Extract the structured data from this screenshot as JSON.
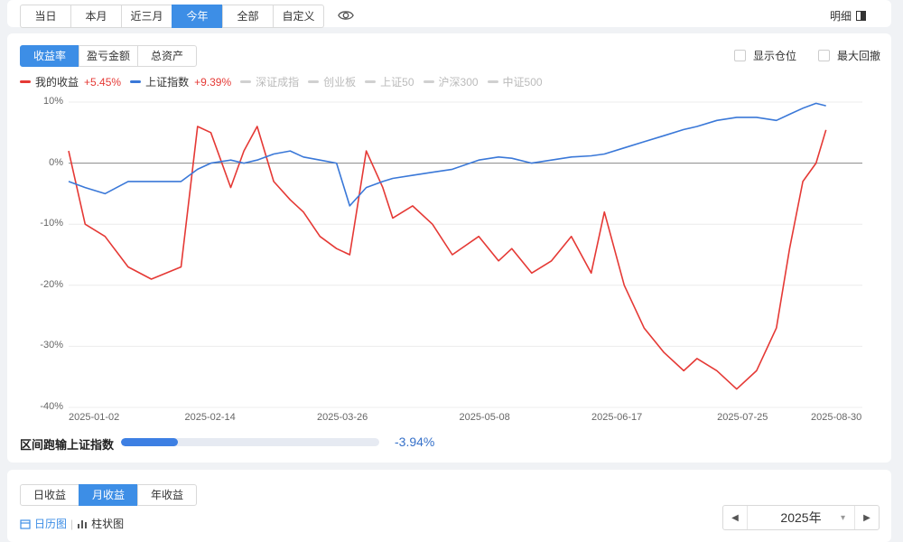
{
  "period_tabs": [
    "当日",
    "本月",
    "近三月",
    "今年",
    "全部",
    "自定义"
  ],
  "period_active": 3,
  "detail_label": "明细",
  "metric_tabs": [
    "收益率",
    "盈亏金额",
    "总资产"
  ],
  "metric_active": 0,
  "checkbox_position": "显示仓位",
  "checkbox_drawdown": "最大回撤",
  "legend": [
    {
      "name": "我的收益",
      "value": "+5.45%",
      "color": "#e53935",
      "active": true
    },
    {
      "name": "上证指数",
      "value": "+9.39%",
      "color": "#3a78d8",
      "active": true
    },
    {
      "name": "深证成指",
      "value": "",
      "color": "#d0d0d0",
      "active": false
    },
    {
      "name": "创业板",
      "value": "",
      "color": "#d0d0d0",
      "active": false
    },
    {
      "name": "上证50",
      "value": "",
      "color": "#d0d0d0",
      "active": false
    },
    {
      "name": "沪深300",
      "value": "",
      "color": "#d0d0d0",
      "active": false
    },
    {
      "name": "中证500",
      "value": "",
      "color": "#d0d0d0",
      "active": false
    }
  ],
  "chart_data": {
    "type": "line",
    "x_range": [
      "2025-01-02",
      "2025-08-30"
    ],
    "x_ticks": [
      "2025-01-02",
      "2025-02-14",
      "2025-03-26",
      "2025-05-08",
      "2025-06-17",
      "2025-07-25",
      "2025-08-30"
    ],
    "y_ticks": [
      "10%",
      "0%",
      "-10%",
      "-20%",
      "-30%",
      "-40%"
    ],
    "ylim": [
      -40,
      10
    ],
    "series": [
      {
        "name": "我的收益",
        "color": "#e53935",
        "x": [
          "2025-01-02",
          "2025-01-07",
          "2025-01-13",
          "2025-01-20",
          "2025-01-27",
          "2025-02-05",
          "2025-02-10",
          "2025-02-14",
          "2025-02-20",
          "2025-02-24",
          "2025-02-28",
          "2025-03-05",
          "2025-03-10",
          "2025-03-14",
          "2025-03-19",
          "2025-03-24",
          "2025-03-28",
          "2025-04-02",
          "2025-04-07",
          "2025-04-10",
          "2025-04-16",
          "2025-04-22",
          "2025-04-28",
          "2025-05-06",
          "2025-05-12",
          "2025-05-16",
          "2025-05-22",
          "2025-05-28",
          "2025-06-03",
          "2025-06-09",
          "2025-06-13",
          "2025-06-19",
          "2025-06-25",
          "2025-07-01",
          "2025-07-07",
          "2025-07-11",
          "2025-07-17",
          "2025-07-23",
          "2025-07-29",
          "2025-08-04",
          "2025-08-08",
          "2025-08-12",
          "2025-08-16",
          "2025-08-19"
        ],
        "values": [
          2,
          -10,
          -12,
          -17,
          -19,
          -17,
          6,
          5,
          -4,
          2,
          6,
          -3,
          -6,
          -8,
          -12,
          -14,
          -15,
          2,
          -4,
          -9,
          -7,
          -10,
          -15,
          -12,
          -16,
          -14,
          -18,
          -16,
          -12,
          -18,
          -8,
          -20,
          -27,
          -31,
          -34,
          -32,
          -34,
          -37,
          -34,
          -27,
          -14,
          -3,
          0,
          5.45
        ]
      },
      {
        "name": "上证指数",
        "color": "#3a78d8",
        "x": [
          "2025-01-02",
          "2025-01-07",
          "2025-01-13",
          "2025-01-20",
          "2025-01-27",
          "2025-02-05",
          "2025-02-10",
          "2025-02-14",
          "2025-02-20",
          "2025-02-24",
          "2025-02-28",
          "2025-03-05",
          "2025-03-10",
          "2025-03-14",
          "2025-03-19",
          "2025-03-24",
          "2025-03-28",
          "2025-04-02",
          "2025-04-07",
          "2025-04-10",
          "2025-04-16",
          "2025-04-22",
          "2025-04-28",
          "2025-05-06",
          "2025-05-12",
          "2025-05-16",
          "2025-05-22",
          "2025-05-28",
          "2025-06-03",
          "2025-06-09",
          "2025-06-13",
          "2025-06-19",
          "2025-06-25",
          "2025-07-01",
          "2025-07-07",
          "2025-07-11",
          "2025-07-17",
          "2025-07-23",
          "2025-07-29",
          "2025-08-04",
          "2025-08-08",
          "2025-08-12",
          "2025-08-16",
          "2025-08-19"
        ],
        "values": [
          -3,
          -4,
          -5,
          -3,
          -3,
          -3,
          -1,
          0,
          0.5,
          0,
          0.5,
          1.5,
          2,
          1,
          0.5,
          0,
          -7,
          -4,
          -3,
          -2.5,
          -2,
          -1.5,
          -1,
          0.5,
          1,
          0.8,
          0,
          0.5,
          1,
          1.2,
          1.5,
          2.5,
          3.5,
          4.5,
          5.5,
          6,
          7,
          7.5,
          7.5,
          7,
          8,
          9,
          9.8,
          9.39
        ]
      }
    ]
  },
  "relative_label": "区间跑输上证指数",
  "relative_value": "-3.94%",
  "relative_bar_fraction": 0.22,
  "bottom_tabs": [
    "日收益",
    "月收益",
    "年收益"
  ],
  "bottom_active": 1,
  "view_calendar": "日历图",
  "view_bar": "柱状图",
  "year_value": "2025年"
}
